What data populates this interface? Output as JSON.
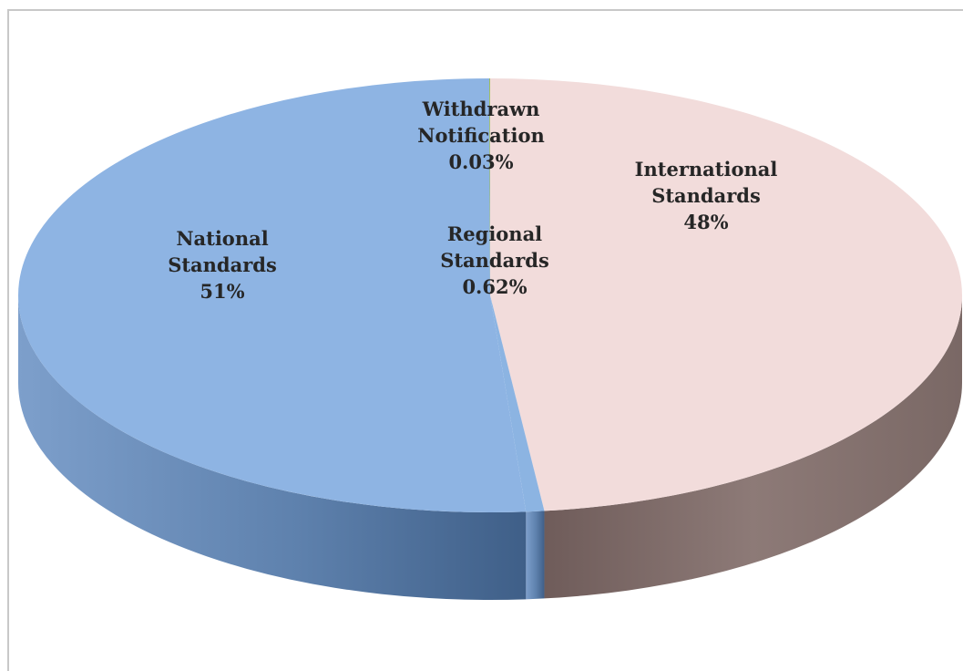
{
  "chart_data": {
    "type": "pie",
    "style": "3d",
    "title": "",
    "legend": "none",
    "slices": [
      {
        "name": "International Standards",
        "label_lines": [
          "International",
          "Standards"
        ],
        "percent_label": "48%",
        "value": 48,
        "color": "#f2dcdb",
        "side_color": "#8a7774"
      },
      {
        "name": "Regional Standards",
        "label_lines": [
          "Regional",
          "Standards"
        ],
        "percent_label": "0.62%",
        "value": 0.62,
        "color": "#8cb4e2",
        "side_color": "#5b7fa8"
      },
      {
        "name": "National Standards",
        "label_lines": [
          "National",
          "Standards"
        ],
        "percent_label": "51%",
        "value": 51,
        "color": "#8eb4e3",
        "side_color": "#5d80ab"
      },
      {
        "name": "Withdrawn Notification",
        "label_lines": [
          "Withdrawn",
          "Notification"
        ],
        "percent_label": "0.03%",
        "value": 0.03,
        "color": "#9bbb59",
        "side_color": "#6b8a3a"
      }
    ]
  }
}
